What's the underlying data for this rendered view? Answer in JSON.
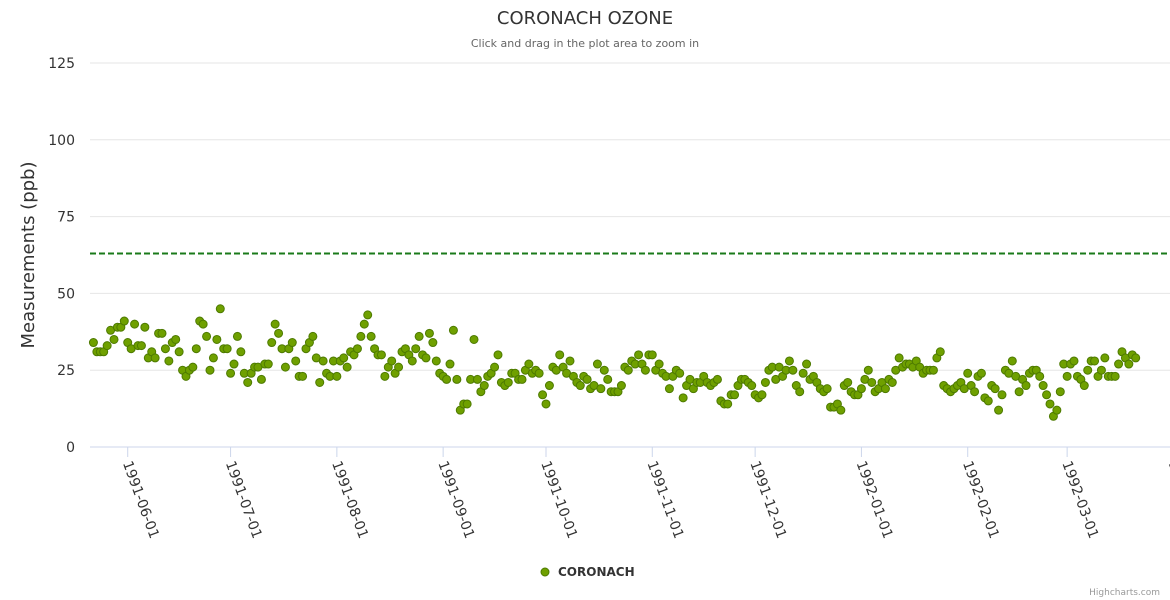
{
  "chart_data": {
    "type": "scatter",
    "title": "CORONACH OZONE",
    "subtitle": "Click and drag in the plot area to zoom in",
    "ylabel": "Measurements (ppb)",
    "xlabel": "",
    "ylim": [
      0,
      125
    ],
    "y_ticks": [
      "0",
      "25",
      "50",
      "75",
      "100",
      "125"
    ],
    "x_ticks": [
      "1991-06-01",
      "1991-07-01",
      "1991-08-01",
      "1991-09-01",
      "1991-10-01",
      "1991-11-01",
      "1991-12-01",
      "1992-01-01",
      "1992-02-01",
      "1992-03-01",
      "1992-04-01"
    ],
    "x_range": [
      "1991-05-21",
      "1992-03-31"
    ],
    "threshold": {
      "value": 63,
      "color": "#1a7a1a"
    },
    "legend": "CORONACH",
    "legend_position": "bottom-center",
    "series": [
      {
        "name": "CORONACH",
        "color": "#6fa000",
        "start_date": "1991-05-22",
        "step_days": 1,
        "values": [
          34,
          31,
          31,
          31,
          33,
          38,
          35,
          39,
          39,
          41,
          34,
          32,
          40,
          33,
          33,
          39,
          29,
          31,
          29,
          37,
          37,
          32,
          28,
          34,
          35,
          31,
          25,
          23,
          25,
          26,
          32,
          41,
          40,
          36,
          25,
          29,
          35,
          45,
          32,
          32,
          24,
          27,
          36,
          31,
          24,
          21,
          24,
          26,
          26,
          22,
          27,
          27,
          34,
          40,
          37,
          32,
          26,
          32,
          34,
          28,
          23,
          23,
          32,
          34,
          36,
          29,
          21,
          28,
          24,
          23,
          28,
          23,
          28,
          29,
          26,
          31,
          30,
          32,
          36,
          40,
          43,
          36,
          32,
          30,
          30,
          23,
          26,
          28,
          24,
          26,
          31,
          32,
          30,
          28,
          32,
          36,
          30,
          29,
          37,
          34,
          28,
          24,
          23,
          22,
          27,
          38,
          22,
          12,
          14,
          14,
          22,
          35,
          22,
          18,
          20,
          23,
          24,
          26,
          30,
          21,
          20,
          21,
          24,
          24,
          22,
          22,
          25,
          27,
          24,
          25,
          24,
          17,
          14,
          20,
          26,
          25,
          30,
          26,
          24,
          28,
          23,
          21,
          20,
          23,
          22,
          19,
          20,
          27,
          19,
          25,
          22,
          18,
          18,
          18,
          20,
          26,
          25,
          28,
          27,
          30,
          27,
          25,
          30,
          30,
          25,
          27,
          24,
          23,
          19,
          23,
          25,
          24,
          16,
          20,
          22,
          19,
          21,
          21,
          23,
          21,
          20,
          21,
          22,
          15,
          14,
          14,
          17,
          17,
          20,
          22,
          22,
          21,
          20,
          17,
          16,
          17,
          21,
          25,
          26,
          22,
          26,
          23,
          25,
          28,
          25,
          20,
          18,
          24,
          27,
          22,
          23,
          21,
          19,
          18,
          19,
          13,
          13,
          14,
          12,
          20,
          21,
          18,
          17,
          17,
          19,
          22,
          25,
          21,
          18,
          19,
          21,
          19,
          22,
          21,
          25,
          29,
          26,
          27,
          27,
          26,
          28,
          26,
          24,
          25,
          25,
          25,
          29,
          31,
          20,
          19,
          18,
          19,
          20,
          21,
          19,
          24,
          20,
          18,
          23,
          24,
          16,
          15,
          20,
          19,
          12,
          17,
          25,
          24,
          28,
          23,
          18,
          22,
          20,
          24,
          25,
          25,
          23,
          20,
          17,
          14,
          10,
          12,
          18,
          27,
          23,
          27,
          28,
          23,
          22,
          20,
          25,
          28,
          28,
          23,
          25,
          29,
          23,
          23,
          23,
          27,
          31,
          29,
          27,
          30,
          29
        ]
      }
    ]
  },
  "credit": "Highcharts.com"
}
